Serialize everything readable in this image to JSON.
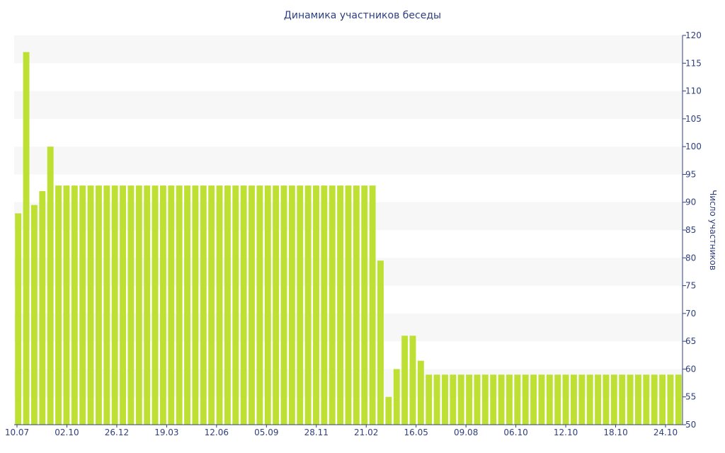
{
  "chart_data": {
    "type": "bar",
    "title": "Динамика участников беседы",
    "xlabel": "",
    "ylabel": "Число участников",
    "ylim": [
      50,
      120
    ],
    "y_ticks": [
      50,
      55,
      60,
      65,
      70,
      75,
      80,
      85,
      90,
      95,
      100,
      105,
      110,
      115,
      120
    ],
    "y_axis_position": "right",
    "grid": "alternating horizontal bands",
    "x_tick_labels": [
      "10.07",
      "02.10",
      "26.12",
      "19.03",
      "12.06",
      "05.09",
      "28.11",
      "21.02",
      "16.05",
      "09.08",
      "06.10",
      "12.10",
      "18.10",
      "24.10"
    ],
    "values": [
      88,
      117,
      89.5,
      92,
      100,
      93,
      93,
      93,
      93,
      93,
      93,
      93,
      93,
      93,
      93,
      93,
      93,
      93,
      93,
      93,
      93,
      93,
      93,
      93,
      93,
      93,
      93,
      93,
      93,
      93,
      93,
      93,
      93,
      93,
      93,
      93,
      93,
      93,
      93,
      93,
      93,
      93,
      93,
      93,
      93,
      79.5,
      55,
      60,
      66,
      66,
      61.5,
      59,
      59,
      59,
      59,
      59,
      59,
      59,
      59,
      59,
      59,
      59,
      59,
      59,
      59,
      59,
      59,
      59,
      59,
      59,
      59,
      59,
      59,
      59,
      59,
      59,
      59,
      59,
      59,
      59,
      59,
      59,
      59
    ],
    "colors": {
      "bar": "#bde033",
      "band": "#f7f7f7",
      "text": "#2f3f7f",
      "axis": "#2f3f7f"
    }
  }
}
